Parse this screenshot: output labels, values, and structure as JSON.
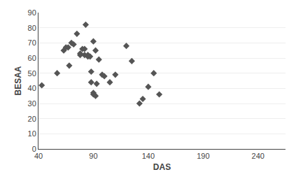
{
  "chart_data": {
    "type": "scatter",
    "x": [
      43,
      57,
      63,
      65,
      67,
      68,
      70,
      72,
      75,
      78,
      78,
      80,
      82,
      82,
      83,
      85,
      85,
      87,
      88,
      88,
      90,
      90,
      90,
      92,
      92,
      93,
      95,
      98,
      100,
      105,
      110,
      120,
      125,
      132,
      135,
      140,
      145,
      150
    ],
    "values": [
      42,
      50,
      65,
      67,
      67,
      55,
      70,
      69,
      76,
      62,
      63,
      66,
      66,
      62,
      82,
      62,
      61,
      61,
      51,
      44,
      37,
      36,
      71,
      65,
      35,
      43,
      59,
      49,
      48,
      44,
      49,
      68,
      58,
      30,
      33,
      41,
      50,
      36
    ],
    "color": "#555555",
    "marker": "diamond",
    "xlabel": "DAS",
    "ylabel": "BESAA",
    "xlim": [
      40,
      265
    ],
    "ylim": [
      0,
      90
    ],
    "xticks": [
      40,
      90,
      140,
      190,
      240
    ],
    "yticks": [
      0,
      10,
      20,
      30,
      40,
      50,
      60,
      70,
      80,
      90
    ],
    "grid": "y"
  }
}
